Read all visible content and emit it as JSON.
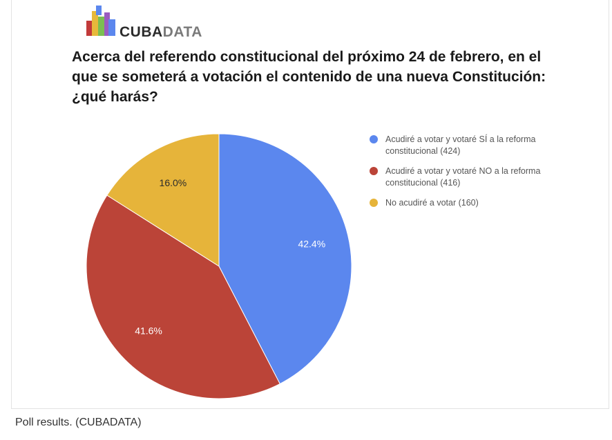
{
  "brand": {
    "logo_part1": "CUBA",
    "logo_part2": "DATA"
  },
  "chart_data": {
    "type": "pie",
    "title": "Acerca del referendo constitucional del próximo 24 de febrero, en el que se someterá a votación el contenido de una nueva Constitución: ¿qué harás?",
    "slices": [
      {
        "label": "Acudiré a votar y votaré SÍ a la reforma constitucional (424)",
        "count": 424,
        "percent": 42.4,
        "percent_label": "42.4%",
        "color": "#5b87ee"
      },
      {
        "label": "Acudiré a votar y votaré NO a la reforma constitucional (416)",
        "count": 416,
        "percent": 41.6,
        "percent_label": "41.6%",
        "color": "#bb4438"
      },
      {
        "label": "No acudiré a votar (160)",
        "count": 160,
        "percent": 16.0,
        "percent_label": "16.0%",
        "color": "#e6b43a"
      }
    ],
    "legend_position": "right"
  },
  "caption": "Poll results. (CUBADATA)",
  "colors": {
    "label_text": "#ffffff",
    "logo_blocks": [
      "#c23a3a",
      "#e7b93b",
      "#5b87ee",
      "#7bbf52",
      "#9a5cc0"
    ]
  }
}
